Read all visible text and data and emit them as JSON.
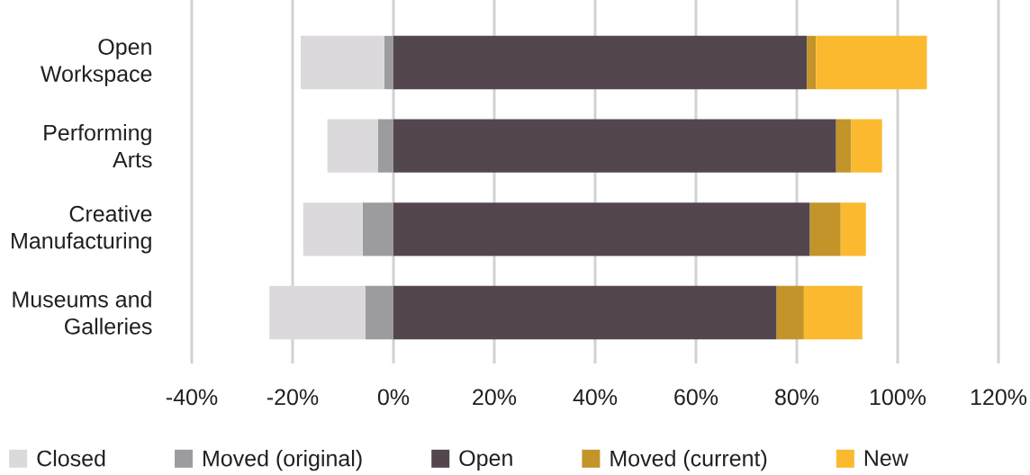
{
  "chart_data": {
    "type": "bar",
    "orientation": "horizontal",
    "stacked": true,
    "categories": [
      "Open Workspace",
      "Performing Arts",
      "Creative Manufacturing",
      "Museums and Galleries"
    ],
    "series": [
      {
        "name": "Moved (original)",
        "color": "#9c9c9e",
        "values": [
          -1.8,
          -3.1,
          -6.1,
          -5.6
        ]
      },
      {
        "name": "Closed",
        "color": "#dbd9dc",
        "values": [
          -16.6,
          -10.0,
          -11.8,
          -19.0
        ]
      },
      {
        "name": "Open",
        "color": "#53464f",
        "values": [
          82.0,
          87.8,
          82.6,
          76.0
        ]
      },
      {
        "name": "Moved (current)",
        "color": "#c2942a",
        "values": [
          1.8,
          3.0,
          6.1,
          5.4
        ]
      },
      {
        "name": "New",
        "color": "#fbb92f",
        "values": [
          22.0,
          6.1,
          5.0,
          11.6
        ]
      }
    ],
    "xlim": [
      -40,
      120
    ],
    "xticks": [
      {
        "value": -40,
        "label": "-40%"
      },
      {
        "value": -20,
        "label": "-20%"
      },
      {
        "value": 0,
        "label": "0%"
      },
      {
        "value": 20,
        "label": "20%"
      },
      {
        "value": 40,
        "label": "40%"
      },
      {
        "value": 60,
        "label": "60%"
      },
      {
        "value": 80,
        "label": "80%"
      },
      {
        "value": 100,
        "label": "100%"
      },
      {
        "value": 120,
        "label": "120%"
      }
    ],
    "grid": "x",
    "legend": "bottom"
  }
}
